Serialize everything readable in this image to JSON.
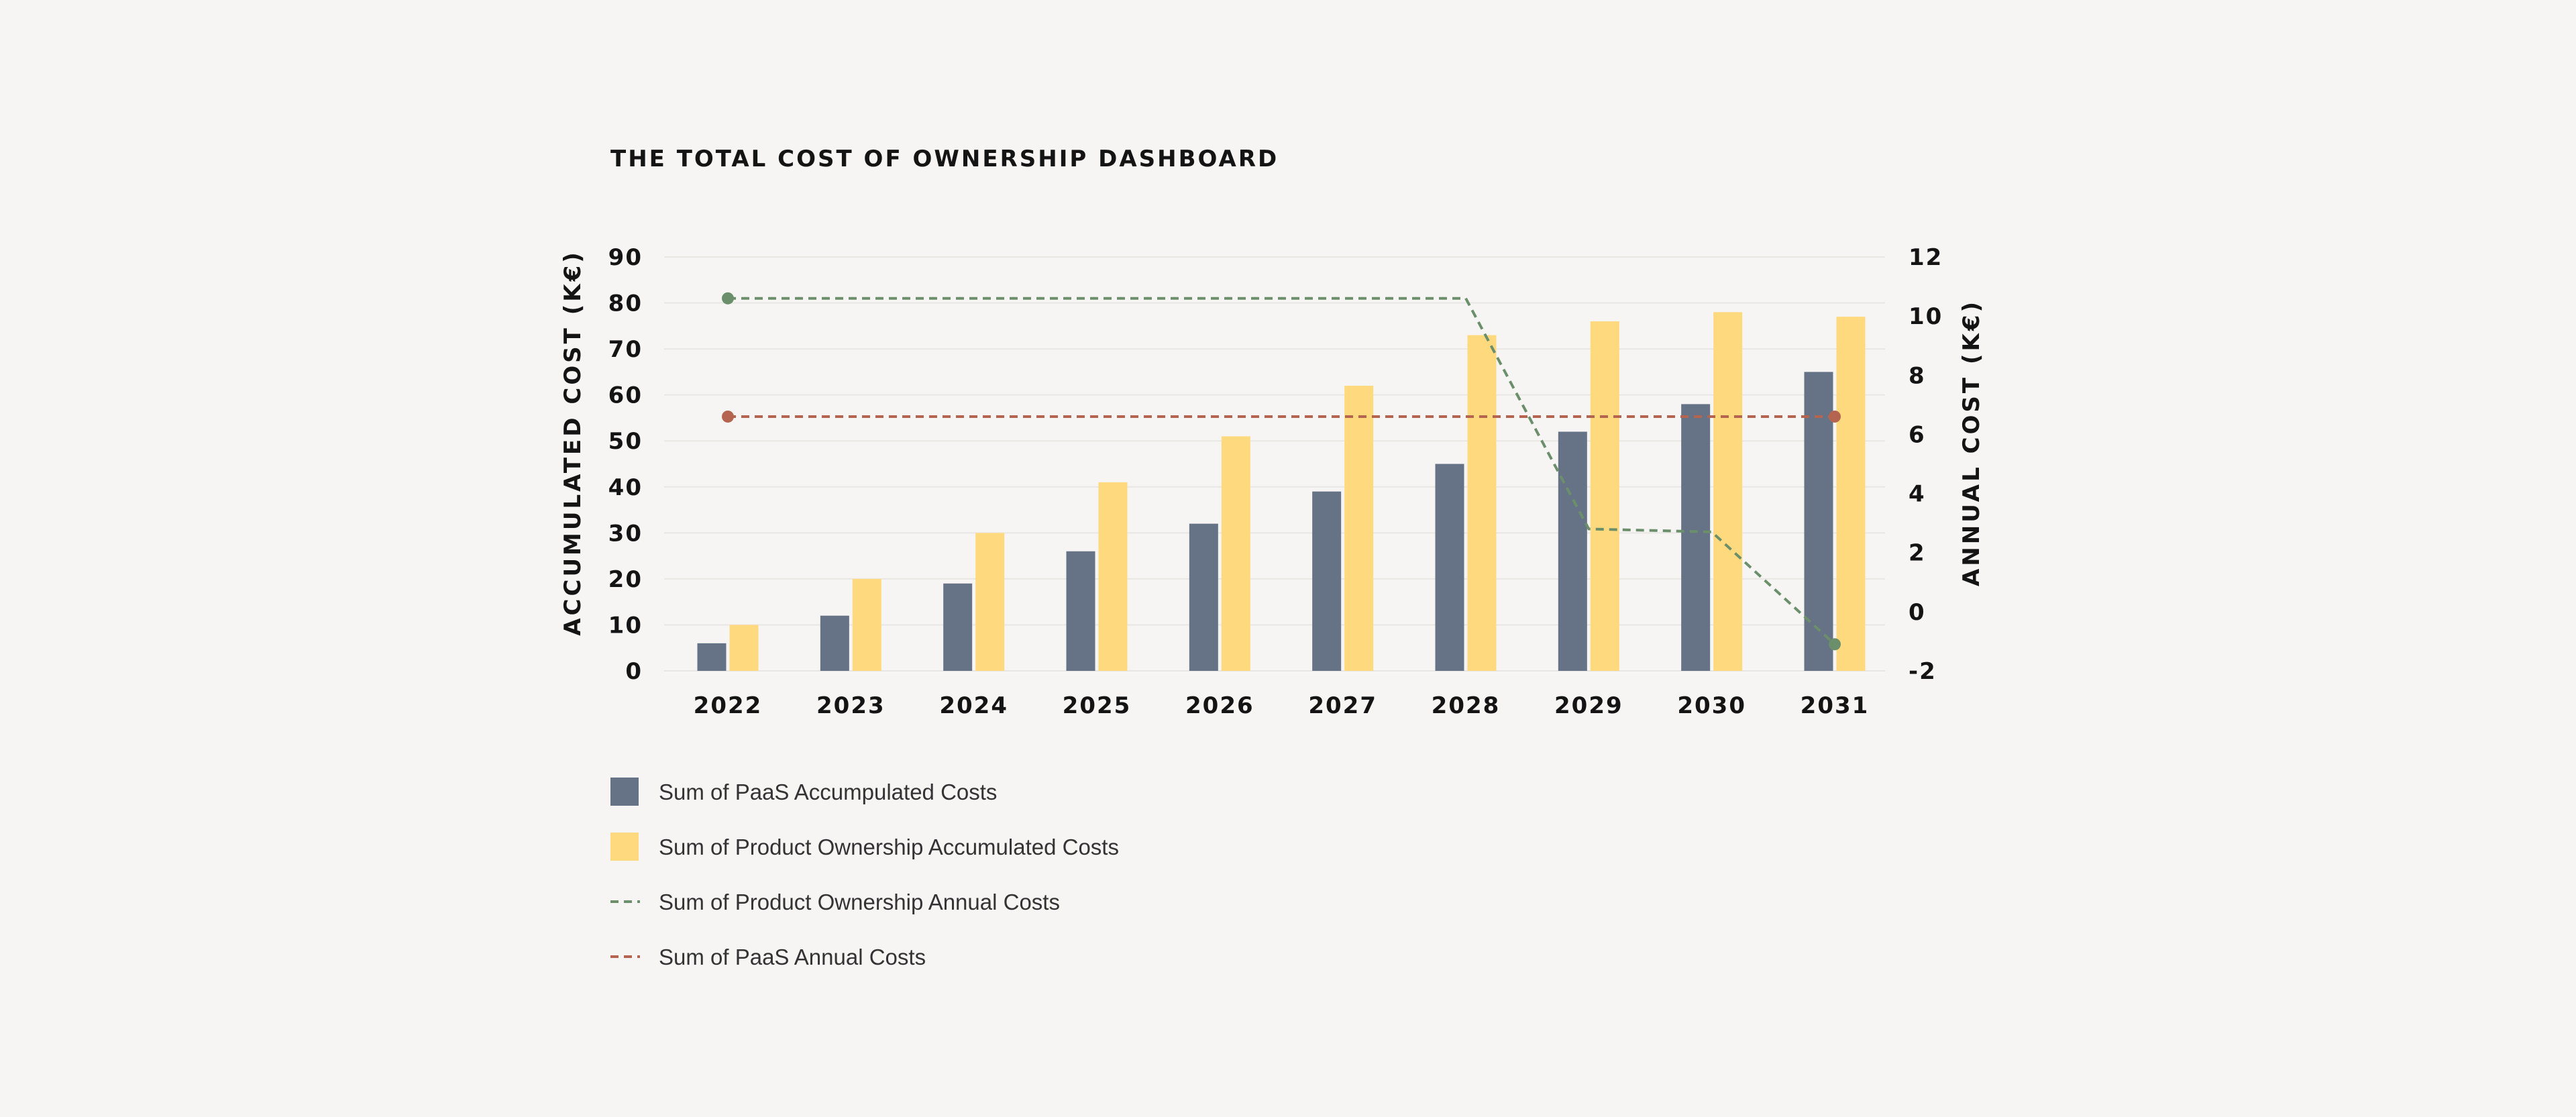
{
  "colors": {
    "background": "#f6f5f3",
    "paas_bar": "#667285",
    "product_bar": "#ffd97e",
    "product_annual_line": "#6c8f6b",
    "paas_annual_line": "#b5654f",
    "gridline": "#e9e7e4"
  },
  "chart_data": {
    "type": "bar",
    "title": "THE TOTAL COST OF OWNERSHIP DASHBOARD",
    "xlabel": "",
    "ylabel": "ACCUMULATED COST (K€)",
    "ylabel_right": "ANNUAL COST (K€)",
    "ylim": [
      0,
      90
    ],
    "yticks": [
      0,
      10,
      20,
      30,
      40,
      50,
      60,
      70,
      80,
      90
    ],
    "ylim_right": [
      -2,
      12
    ],
    "yticks_right": [
      -2,
      0,
      2,
      4,
      6,
      8,
      10,
      12
    ],
    "grid": true,
    "legend_position": "bottom-left",
    "categories": [
      "2022",
      "2023",
      "2024",
      "2025",
      "2026",
      "2027",
      "2028",
      "2029",
      "2030",
      "2031"
    ],
    "series": [
      {
        "name": "Sum of PaaS Accumpulated Costs",
        "kind": "bar",
        "axis": "left",
        "values": [
          6,
          12,
          19,
          26,
          32,
          39,
          45,
          52,
          58,
          65
        ]
      },
      {
        "name": "Sum of Product Ownership Accumulated Costs",
        "kind": "bar",
        "axis": "left",
        "values": [
          10,
          20,
          30,
          41,
          51,
          62,
          73,
          76,
          78,
          77
        ]
      },
      {
        "name": "Sum of Product Ownership Annual Costs",
        "kind": "line-dashed",
        "axis": "right",
        "values": [
          10.6,
          10.6,
          10.6,
          10.6,
          10.6,
          10.6,
          10.6,
          2.8,
          2.7,
          -1.1
        ]
      },
      {
        "name": "Sum of PaaS Annual Costs",
        "kind": "line-dashed",
        "axis": "right",
        "values": [
          6.6,
          6.6,
          6.6,
          6.6,
          6.6,
          6.6,
          6.6,
          6.6,
          6.6,
          6.6
        ]
      }
    ]
  }
}
